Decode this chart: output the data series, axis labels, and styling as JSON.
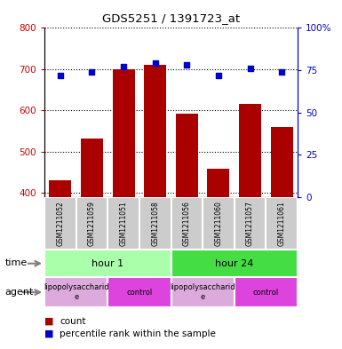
{
  "title": "GDS5251 / 1391723_at",
  "samples": [
    "GSM1211052",
    "GSM1211059",
    "GSM1211051",
    "GSM1211058",
    "GSM1211056",
    "GSM1211060",
    "GSM1211057",
    "GSM1211061"
  ],
  "counts": [
    430,
    533,
    700,
    710,
    593,
    460,
    615,
    560
  ],
  "percentiles": [
    72,
    74,
    77,
    79,
    78,
    72,
    76,
    74
  ],
  "ylim_left": [
    390,
    800
  ],
  "ylim_right": [
    0,
    100
  ],
  "yticks_left": [
    400,
    500,
    600,
    700,
    800
  ],
  "yticks_right": [
    0,
    25,
    50,
    75,
    100
  ],
  "bar_color": "#aa0000",
  "dot_color": "#0000cc",
  "bar_bottom": 390,
  "time_groups": [
    {
      "label": "hour 1",
      "span": [
        0,
        4
      ],
      "color": "#aaffaa"
    },
    {
      "label": "hour 24",
      "span": [
        4,
        8
      ],
      "color": "#44dd44"
    }
  ],
  "agent_groups": [
    {
      "label": "lipopolysaccharid\ne",
      "span": [
        0,
        2
      ],
      "color": "#ddaadd"
    },
    {
      "label": "control",
      "span": [
        2,
        4
      ],
      "color": "#dd44dd"
    },
    {
      "label": "lipopolysaccharid\ne",
      "span": [
        4,
        6
      ],
      "color": "#ddaadd"
    },
    {
      "label": "control",
      "span": [
        6,
        8
      ],
      "color": "#dd44dd"
    }
  ],
  "legend_count_color": "#aa0000",
  "legend_dot_color": "#0000cc",
  "sample_box_color": "#cccccc",
  "background_color": "#ffffff",
  "right_axis_color": "#0000cc",
  "left_axis_color": "#cc0000"
}
